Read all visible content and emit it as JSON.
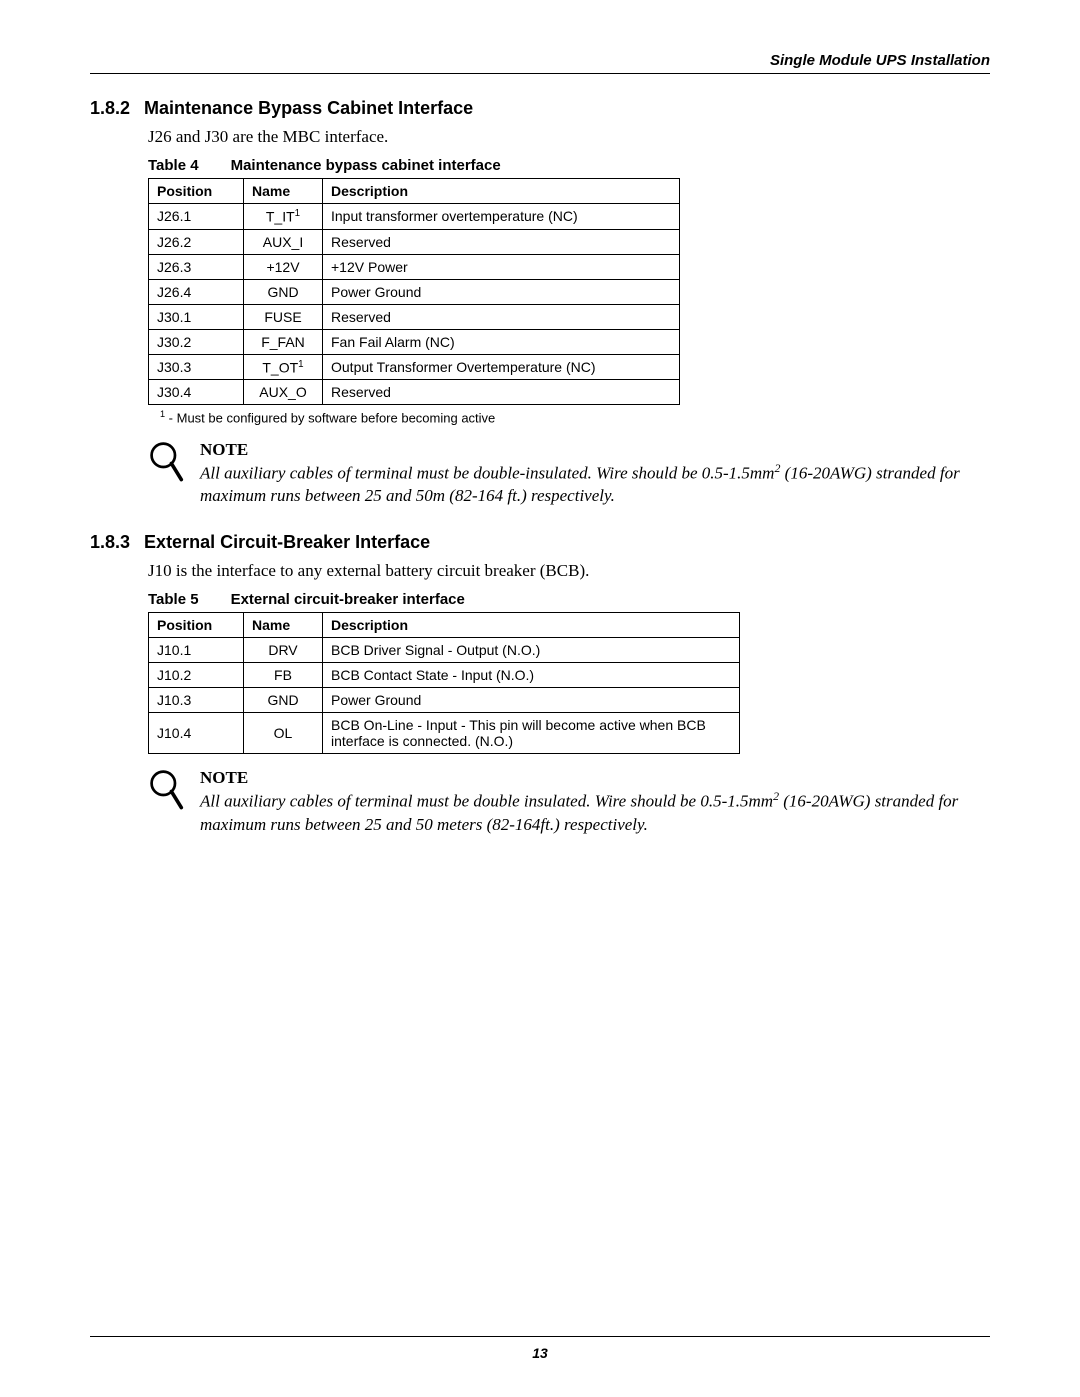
{
  "header": {
    "title": "Single Module UPS Installation"
  },
  "section1": {
    "number": "1.8.2",
    "title": "Maintenance Bypass Cabinet Interface",
    "intro": "J26 and J30 are the MBC interface.",
    "table_label": "Table 4",
    "table_title": "Maintenance bypass cabinet interface",
    "columns": [
      "Position",
      "Name",
      "Description"
    ],
    "rows": [
      {
        "pos": "J26.1",
        "name": "T_IT",
        "name_sup": "1",
        "desc": "Input transformer overtemperature (NC)"
      },
      {
        "pos": "J26.2",
        "name": "AUX_I",
        "name_sup": "",
        "desc": "Reserved"
      },
      {
        "pos": "J26.3",
        "name": "+12V",
        "name_sup": "",
        "desc": "+12V Power"
      },
      {
        "pos": "J26.4",
        "name": "GND",
        "name_sup": "",
        "desc": "Power Ground"
      },
      {
        "pos": "J30.1",
        "name": "FUSE",
        "name_sup": "",
        "desc": "Reserved"
      },
      {
        "pos": "J30.2",
        "name": "F_FAN",
        "name_sup": "",
        "desc": "Fan Fail Alarm (NC)"
      },
      {
        "pos": "J30.3",
        "name": "T_OT",
        "name_sup": "1",
        "desc": "Output Transformer Overtemperature (NC)"
      },
      {
        "pos": "J30.4",
        "name": "AUX_O",
        "name_sup": "",
        "desc": "Reserved"
      }
    ],
    "footnote_sup": "1",
    "footnote": " - Must be configured by software before becoming active",
    "note_label": "NOTE",
    "note_body_pre": "All auxiliary cables of terminal must be double-insulated. Wire should be 0.5-1.5mm",
    "note_body_sup": "2",
    "note_body_post": " (16-20AWG) stranded for maximum runs between 25 and 50m (82-164 ft.) respectively."
  },
  "section2": {
    "number": "1.8.3",
    "title": "External Circuit-Breaker Interface",
    "intro": "J10 is the interface to any external battery circuit breaker (BCB).",
    "table_label": "Table 5",
    "table_title": "External circuit-breaker interface",
    "columns": [
      "Position",
      "Name",
      "Description"
    ],
    "rows": [
      {
        "pos": "J10.1",
        "name": "DRV",
        "desc": "BCB Driver Signal - Output (N.O.)"
      },
      {
        "pos": "J10.2",
        "name": "FB",
        "desc": "BCB Contact State - Input (N.O.)"
      },
      {
        "pos": "J10.3",
        "name": "GND",
        "desc": "Power Ground"
      },
      {
        "pos": "J10.4",
        "name": "OL",
        "desc": "BCB On-Line - Input - This pin will become active when BCB interface is connected. (N.O.)"
      }
    ],
    "note_label": "NOTE",
    "note_body_pre": "All auxiliary cables of terminal must be double insulated. Wire should be 0.5-1.5mm",
    "note_body_sup": "2",
    "note_body_post": " (16-20AWG) stranded for maximum runs between 25 and 50 meters (82-164ft.) respectively."
  },
  "page_number": "13"
}
